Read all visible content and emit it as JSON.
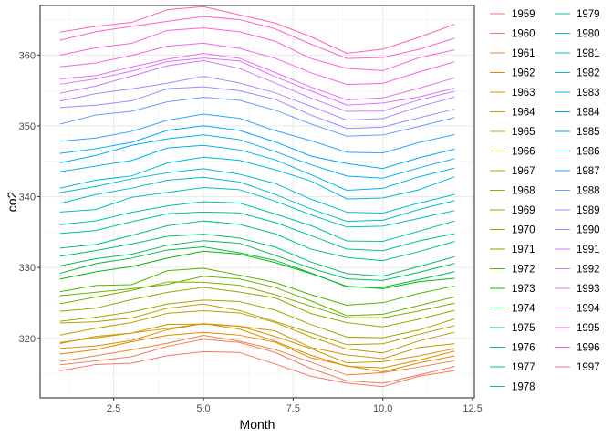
{
  "chart_data": {
    "type": "line",
    "xlabel": "Month",
    "ylabel": "co2",
    "xlim": [
      0.45,
      12.55
    ],
    "ylim": [
      311.6,
      367.0
    ],
    "xticks": [
      2.5,
      5.0,
      7.5,
      10.0,
      12.5
    ],
    "xtick_labels": [
      "2.5",
      "5.0",
      "7.5",
      "10.0",
      "12.5"
    ],
    "yticks": [
      320,
      330,
      340,
      350,
      360
    ],
    "ytick_labels": [
      "320",
      "330",
      "340",
      "350",
      "360"
    ],
    "grid": true,
    "legend_position": "right",
    "x": [
      1,
      2,
      3,
      4,
      5,
      6,
      7,
      8,
      9,
      10,
      11,
      12
    ],
    "series": [
      {
        "name": "1959",
        "color": "#F8766D",
        "values": [
          315.42,
          316.31,
          316.5,
          317.56,
          318.13,
          318.0,
          316.39,
          314.65,
          313.68,
          313.18,
          314.66,
          315.43
        ]
      },
      {
        "name": "1960",
        "color": "#F37B59",
        "values": [
          316.27,
          316.81,
          317.42,
          318.87,
          319.87,
          319.43,
          318.01,
          315.74,
          314.0,
          313.68,
          314.84,
          316.03
        ]
      },
      {
        "name": "1961",
        "color": "#ED8141",
        "values": [
          316.73,
          317.54,
          318.38,
          319.31,
          320.42,
          319.61,
          318.42,
          316.63,
          314.83,
          315.16,
          315.94,
          316.85
        ]
      },
      {
        "name": "1962",
        "color": "#E58700",
        "values": [
          317.78,
          318.4,
          319.53,
          320.42,
          320.85,
          320.45,
          319.45,
          317.25,
          316.11,
          315.27,
          316.53,
          317.53
        ]
      },
      {
        "name": "1963",
        "color": "#DD8D00",
        "values": [
          318.58,
          318.92,
          319.7,
          321.22,
          322.08,
          321.31,
          319.58,
          317.61,
          316.05,
          315.83,
          316.91,
          318.2
        ]
      },
      {
        "name": "1964",
        "color": "#D39200",
        "values": [
          319.41,
          320.07,
          320.74,
          321.4,
          322.06,
          321.73,
          320.27,
          318.54,
          316.54,
          316.71,
          317.53,
          318.55
        ]
      },
      {
        "name": "1965",
        "color": "#C99800",
        "values": [
          319.27,
          320.28,
          320.73,
          321.97,
          322.0,
          321.71,
          321.05,
          318.71,
          317.66,
          317.14,
          318.7,
          319.25
        ]
      },
      {
        "name": "1966",
        "color": "#BD9D00",
        "values": [
          320.46,
          321.43,
          322.23,
          323.54,
          323.91,
          323.59,
          322.24,
          320.2,
          318.48,
          317.94,
          319.63,
          320.87
        ]
      },
      {
        "name": "1967",
        "color": "#B0A100",
        "values": [
          322.17,
          322.34,
          322.88,
          324.25,
          324.83,
          323.93,
          322.38,
          320.76,
          319.1,
          319.24,
          320.56,
          321.8
        ]
      },
      {
        "name": "1968",
        "color": "#A3A500",
        "values": [
          322.4,
          322.99,
          323.73,
          324.86,
          325.4,
          325.2,
          323.98,
          321.95,
          320.18,
          320.09,
          321.16,
          322.74
        ]
      },
      {
        "name": "1969",
        "color": "#93AA00",
        "values": [
          323.83,
          324.26,
          325.47,
          326.5,
          327.21,
          326.54,
          325.72,
          323.5,
          322.22,
          321.62,
          322.69,
          323.95
        ]
      },
      {
        "name": "1970",
        "color": "#81AD00",
        "values": [
          324.89,
          325.82,
          326.77,
          327.97,
          327.91,
          327.5,
          326.18,
          324.53,
          322.93,
          322.9,
          323.85,
          324.96
        ]
      },
      {
        "name": "1971",
        "color": "#6BB100",
        "values": [
          326.01,
          326.51,
          327.01,
          327.62,
          328.76,
          328.4,
          327.2,
          325.27,
          323.2,
          323.4,
          324.63,
          325.85
        ]
      },
      {
        "name": "1972",
        "color": "#4FB400",
        "values": [
          326.6,
          327.47,
          327.58,
          329.56,
          329.9,
          328.92,
          327.88,
          326.16,
          324.68,
          325.04,
          326.34,
          327.39
        ]
      },
      {
        "name": "1973",
        "color": "#00B709",
        "values": [
          328.37,
          329.4,
          330.14,
          331.33,
          332.31,
          331.9,
          330.7,
          329.15,
          327.35,
          327.02,
          327.99,
          328.48
        ]
      },
      {
        "name": "1974",
        "color": "#00BA38",
        "values": [
          329.18,
          330.55,
          331.32,
          332.48,
          332.92,
          332.08,
          331.01,
          329.23,
          327.27,
          327.21,
          328.29,
          329.41
        ]
      },
      {
        "name": "1975",
        "color": "#00BC56",
        "values": [
          330.23,
          331.25,
          331.87,
          333.14,
          333.8,
          333.43,
          331.73,
          329.9,
          328.4,
          328.17,
          329.32,
          330.59
        ]
      },
      {
        "name": "1976",
        "color": "#00BE6D",
        "values": [
          331.58,
          332.39,
          333.33,
          334.41,
          334.71,
          334.17,
          332.89,
          330.77,
          329.14,
          328.78,
          330.14,
          331.52
        ]
      },
      {
        "name": "1977",
        "color": "#00C082",
        "values": [
          332.75,
          333.24,
          334.53,
          335.9,
          336.57,
          336.1,
          334.76,
          332.59,
          331.42,
          330.98,
          332.24,
          333.68
        ]
      },
      {
        "name": "1978",
        "color": "#00C094",
        "values": [
          334.8,
          335.22,
          336.47,
          337.59,
          337.84,
          337.72,
          336.37,
          334.51,
          332.6,
          332.38,
          333.75,
          334.78
        ]
      },
      {
        "name": "1979",
        "color": "#00C1A5",
        "values": [
          336.05,
          336.59,
          337.79,
          338.71,
          339.3,
          339.12,
          337.56,
          335.92,
          333.75,
          333.7,
          335.12,
          336.56
        ]
      },
      {
        "name": "1980",
        "color": "#00C0B5",
        "values": [
          337.84,
          338.19,
          339.91,
          340.6,
          341.29,
          341.0,
          339.39,
          337.43,
          335.72,
          335.84,
          336.93,
          338.04
        ]
      },
      {
        "name": "1981",
        "color": "#00BFC4",
        "values": [
          339.06,
          340.3,
          341.21,
          342.33,
          342.74,
          342.08,
          340.32,
          338.26,
          336.52,
          336.68,
          338.19,
          339.44
        ]
      },
      {
        "name": "1982",
        "color": "#00BCD3",
        "values": [
          340.57,
          341.44,
          342.53,
          343.39,
          343.96,
          343.18,
          341.88,
          339.65,
          337.81,
          337.69,
          339.09,
          340.32
        ]
      },
      {
        "name": "1983",
        "color": "#00B9E0",
        "values": [
          341.2,
          342.35,
          342.93,
          344.77,
          345.58,
          345.14,
          343.81,
          342.21,
          339.69,
          339.82,
          340.98,
          342.82
        ]
      },
      {
        "name": "1984",
        "color": "#00B4EC",
        "values": [
          343.52,
          344.33,
          345.11,
          346.88,
          347.25,
          346.62,
          345.22,
          343.11,
          340.9,
          341.18,
          342.8,
          344.04
        ]
      },
      {
        "name": "1985",
        "color": "#00AFF7",
        "values": [
          344.79,
          345.82,
          347.25,
          348.17,
          348.74,
          348.07,
          346.38,
          344.51,
          342.92,
          342.62,
          344.06,
          345.38
        ]
      },
      {
        "name": "1986",
        "color": "#00A8FF",
        "values": [
          346.11,
          346.78,
          347.68,
          349.37,
          350.03,
          349.37,
          347.76,
          345.73,
          344.68,
          343.99,
          345.48,
          346.72
        ]
      },
      {
        "name": "1987",
        "color": "#35A2FF",
        "values": [
          347.84,
          348.29,
          349.23,
          350.8,
          351.66,
          351.07,
          349.33,
          347.92,
          346.27,
          346.18,
          347.64,
          348.78
        ]
      },
      {
        "name": "1988",
        "color": "#7199FF",
        "values": [
          350.25,
          351.54,
          352.05,
          353.41,
          354.04,
          353.62,
          352.22,
          350.27,
          348.55,
          348.72,
          349.91,
          351.18
        ]
      },
      {
        "name": "1989",
        "color": "#9590FF",
        "values": [
          352.6,
          352.92,
          353.53,
          355.26,
          355.52,
          354.97,
          353.75,
          351.52,
          349.64,
          349.83,
          351.14,
          352.37
        ]
      },
      {
        "name": "1990",
        "color": "#B086FF",
        "values": [
          353.5,
          354.55,
          355.23,
          356.04,
          357.0,
          356.07,
          354.67,
          352.76,
          350.82,
          351.04,
          352.69,
          354.07
        ]
      },
      {
        "name": "1991",
        "color": "#C77CFF",
        "values": [
          354.59,
          355.63,
          357.03,
          358.48,
          359.22,
          358.12,
          356.06,
          353.92,
          352.05,
          352.11,
          353.64,
          354.89
        ]
      },
      {
        "name": "1992",
        "color": "#D973FC",
        "values": [
          355.88,
          356.63,
          357.72,
          359.07,
          359.58,
          359.17,
          356.94,
          354.92,
          352.94,
          353.23,
          354.09,
          355.33
        ]
      },
      {
        "name": "1993",
        "color": "#E86BF4",
        "values": [
          356.63,
          357.1,
          358.32,
          359.41,
          360.23,
          359.55,
          357.53,
          355.48,
          353.67,
          353.95,
          355.3,
          356.78
        ]
      },
      {
        "name": "1994",
        "color": "#F465E9",
        "values": [
          358.34,
          358.89,
          359.95,
          361.25,
          361.67,
          360.94,
          359.55,
          357.49,
          355.84,
          356.0,
          357.59,
          359.05
        ]
      },
      {
        "name": "1995",
        "color": "#FC61DB",
        "values": [
          359.98,
          361.03,
          361.66,
          363.48,
          363.82,
          363.3,
          361.94,
          359.5,
          358.11,
          357.8,
          359.61,
          360.74
        ]
      },
      {
        "name": "1996",
        "color": "#FF61CC",
        "values": [
          362.09,
          363.29,
          364.06,
          364.76,
          365.45,
          365.01,
          363.7,
          361.54,
          359.51,
          359.65,
          360.8,
          362.38
        ]
      },
      {
        "name": "1997",
        "color": "#FF64B0",
        "values": [
          363.23,
          364.06,
          364.61,
          366.4,
          366.84,
          365.68,
          364.52,
          362.57,
          360.24,
          360.83,
          362.49,
          364.34
        ]
      }
    ]
  }
}
